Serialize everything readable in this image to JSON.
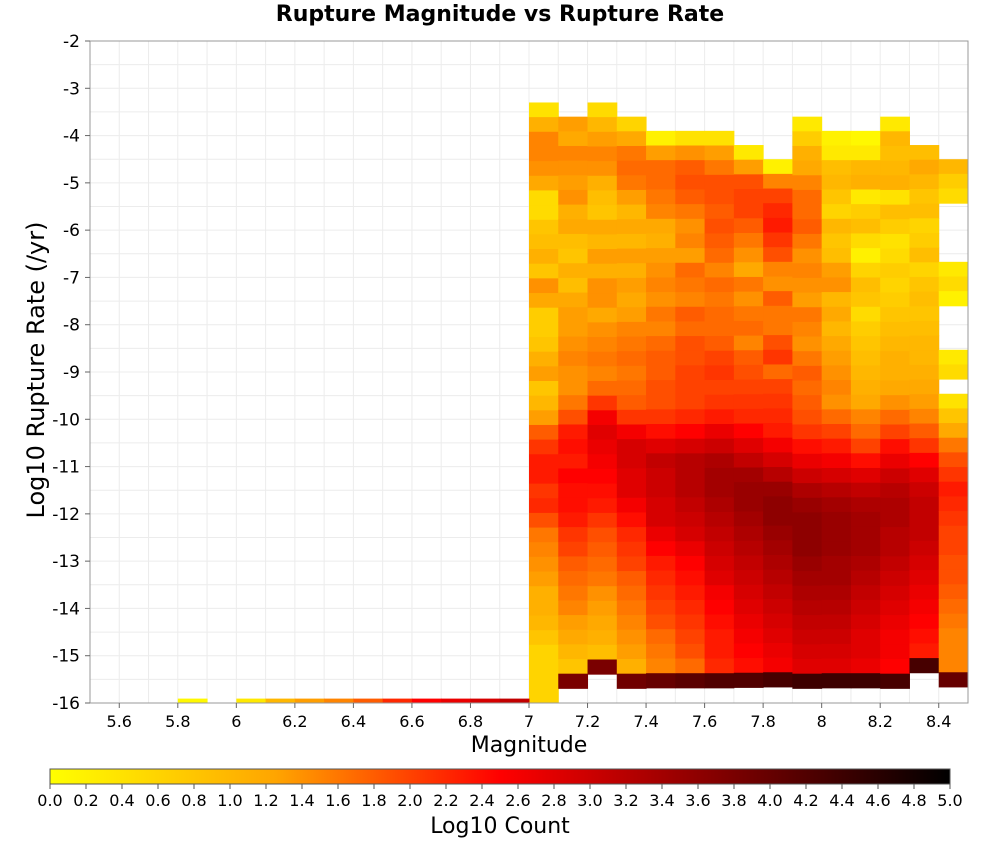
{
  "chart_data": {
    "type": "heatmap",
    "title": "Rupture Magnitude vs Rupture Rate",
    "xlabel": "Magnitude",
    "ylabel": "Log10 Rupture Rate (/yr)",
    "xlim": [
      5.5,
      8.5
    ],
    "ylim": [
      -16,
      -2
    ],
    "x_ticks": [
      "5.6",
      "5.8",
      "6",
      "6.2",
      "6.4",
      "6.6",
      "6.8",
      "7",
      "7.2",
      "7.4",
      "7.6",
      "7.8",
      "8",
      "8.2",
      "8.4"
    ],
    "y_ticks": [
      "-2",
      "-3",
      "-4",
      "-5",
      "-6",
      "-7",
      "-8",
      "-9",
      "-10",
      "-11",
      "-12",
      "-13",
      "-14",
      "-15",
      "-16"
    ],
    "bin_width_x": 0.1,
    "bin_height_y": 0.31,
    "grid": true,
    "colorbar": {
      "label": "Log10 Count",
      "min": 0,
      "max": 5,
      "ticks": [
        "0.0",
        "0.2",
        "0.4",
        "0.6",
        "0.8",
        "1.0",
        "1.2",
        "1.4",
        "1.6",
        "1.8",
        "2.0",
        "2.2",
        "2.4",
        "2.6",
        "2.8",
        "3.0",
        "3.2",
        "3.4",
        "3.6",
        "3.8",
        "4.0",
        "4.2",
        "4.4",
        "4.6",
        "4.8",
        "5.0"
      ],
      "colors": [
        "#ffff00",
        "#ffa500",
        "#ff0000",
        "#7f0000",
        "#000000"
      ]
    },
    "bottom_row": {
      "y": -16,
      "points": [
        {
          "x": 5.85,
          "value": 0.1
        },
        {
          "x": 6.05,
          "value": 0.3
        },
        {
          "x": 6.15,
          "value": 1.0
        },
        {
          "x": 6.25,
          "value": 1.3
        },
        {
          "x": 6.35,
          "value": 1.5
        },
        {
          "x": 6.45,
          "value": 1.8
        },
        {
          "x": 6.55,
          "value": 2.2
        },
        {
          "x": 6.65,
          "value": 2.5
        },
        {
          "x": 6.75,
          "value": 2.7
        },
        {
          "x": 6.85,
          "value": 2.9
        },
        {
          "x": 6.95,
          "value": 3.1
        }
      ]
    },
    "columns": [
      {
        "x": 7.05,
        "top": -3.3,
        "values": [
          0.4,
          1.1,
          1.5,
          1.5,
          1.4,
          1.2,
          0.5,
          0.5,
          0.8,
          0.9,
          1.1,
          0.8,
          1.4,
          1.2,
          0.7,
          0.7,
          0.8,
          1.1,
          1.3,
          0.8,
          1.0,
          1.3,
          1.8,
          2.1,
          2.3,
          2.3,
          2.1,
          2.2,
          1.9,
          1.6,
          1.5,
          1.4,
          1.3,
          1.1,
          1.1,
          1.0,
          0.8,
          0.6,
          0.6,
          0.6,
          0.6,
          0.5,
          0.6,
          0.5
        ]
      },
      {
        "x": 7.15,
        "top": -3.6,
        "values": [
          1.3,
          1.2,
          1.5,
          1.4,
          1.3,
          1.4,
          1.1,
          1.2,
          0.9,
          0.8,
          1.1,
          0.9,
          1.2,
          1.3,
          1.3,
          1.4,
          1.5,
          1.4,
          1.4,
          1.6,
          1.9,
          2.3,
          2.4,
          2.3,
          2.5,
          2.4,
          2.4,
          2.3,
          2.1,
          2.0,
          1.8,
          1.7,
          1.6,
          1.5,
          1.3,
          1.2,
          1.0,
          0.8,
          3.8
        ]
      },
      {
        "x": 7.25,
        "top": -3.3,
        "values": [
          0.5,
          1.0,
          1.3,
          1.5,
          1.4,
          1.1,
          0.9,
          0.8,
          1.2,
          1.0,
          1.3,
          1.1,
          1.4,
          1.4,
          1.2,
          1.4,
          1.5,
          1.6,
          1.5,
          1.7,
          2.1,
          2.6,
          2.8,
          2.7,
          2.6,
          2.5,
          2.4,
          2.3,
          2.1,
          1.9,
          1.8,
          1.7,
          1.6,
          1.4,
          1.3,
          1.2,
          1.1,
          0.9,
          3.8
        ]
      },
      {
        "x": 7.35,
        "top": -3.6,
        "values": [
          0.6,
          1.2,
          1.6,
          1.7,
          1.6,
          1.3,
          1.0,
          1.2,
          1.0,
          1.3,
          1.1,
          1.3,
          1.2,
          1.3,
          1.5,
          1.6,
          1.7,
          1.6,
          1.7,
          1.8,
          2.1,
          2.6,
          2.9,
          2.9,
          2.8,
          2.8,
          2.6,
          2.4,
          2.2,
          2.1,
          2.0,
          1.8,
          1.7,
          1.6,
          1.5,
          1.4,
          1.3,
          1.1,
          3.9
        ]
      },
      {
        "x": 7.45,
        "top": -3.9,
        "values": [
          0.2,
          1.3,
          1.7,
          1.7,
          1.6,
          1.5,
          1.2,
          1.1,
          1.3,
          1.4,
          1.5,
          1.4,
          1.6,
          1.5,
          1.7,
          1.8,
          1.8,
          1.9,
          1.9,
          2.1,
          2.4,
          2.8,
          3.1,
          3.0,
          3.0,
          2.9,
          2.9,
          2.7,
          2.5,
          2.3,
          2.2,
          2.1,
          2.0,
          1.9,
          1.7,
          1.6,
          1.5,
          4.0
        ]
      },
      {
        "x": 7.55,
        "top": -3.9,
        "values": [
          0.4,
          1.4,
          1.8,
          1.9,
          1.8,
          1.6,
          1.4,
          1.5,
          1.3,
          1.7,
          1.6,
          1.5,
          1.8,
          1.7,
          1.9,
          1.9,
          2.0,
          2.0,
          2.0,
          2.2,
          2.5,
          2.9,
          3.2,
          3.2,
          3.2,
          3.1,
          3.0,
          2.9,
          2.7,
          2.5,
          2.4,
          2.3,
          2.2,
          2.1,
          2.0,
          1.9,
          1.7,
          4.1
        ]
      },
      {
        "x": 7.65,
        "top": -3.9,
        "values": [
          0.4,
          1.3,
          1.6,
          1.9,
          1.9,
          1.8,
          1.9,
          1.8,
          1.7,
          1.5,
          1.7,
          1.6,
          1.7,
          1.7,
          1.8,
          2.0,
          2.1,
          2.0,
          2.1,
          2.3,
          2.7,
          3.0,
          3.3,
          3.4,
          3.4,
          3.3,
          3.2,
          3.1,
          3.0,
          2.9,
          2.8,
          2.6,
          2.5,
          2.4,
          2.3,
          2.3,
          2.2,
          4.2
        ]
      },
      {
        "x": 7.75,
        "top": -4.2,
        "values": [
          0.3,
          1.3,
          1.9,
          2.0,
          2.0,
          1.8,
          1.6,
          1.4,
          1.2,
          1.6,
          1.4,
          1.6,
          1.7,
          1.5,
          1.8,
          1.9,
          2.0,
          2.1,
          2.2,
          2.5,
          2.8,
          3.1,
          3.4,
          3.5,
          3.5,
          3.4,
          3.3,
          3.2,
          3.1,
          3.0,
          2.9,
          2.8,
          2.7,
          2.6,
          2.5,
          2.4,
          4.2
        ]
      },
      {
        "x": 7.85,
        "top": -4.5,
        "values": [
          0.2,
          1.5,
          2.0,
          2.2,
          2.3,
          2.1,
          1.9,
          1.5,
          1.4,
          1.8,
          1.6,
          1.6,
          1.9,
          2.1,
          1.7,
          2.0,
          2.1,
          2.2,
          2.3,
          2.6,
          2.9,
          3.2,
          3.5,
          3.6,
          3.6,
          3.5,
          3.4,
          3.3,
          3.2,
          3.1,
          3.0,
          2.9,
          2.8,
          2.7,
          2.6,
          4.3
        ]
      },
      {
        "x": 7.95,
        "top": -3.6,
        "values": [
          0.3,
          0.7,
          1.1,
          1.2,
          1.5,
          1.7,
          1.7,
          1.8,
          1.6,
          1.4,
          1.5,
          1.4,
          1.3,
          1.6,
          1.5,
          1.4,
          1.6,
          1.8,
          1.7,
          1.8,
          1.9,
          2.1,
          2.4,
          2.7,
          3.0,
          3.3,
          3.5,
          3.6,
          3.6,
          3.6,
          3.5,
          3.4,
          3.3,
          3.2,
          3.1,
          3.0,
          2.9,
          2.8,
          4.4
        ]
      },
      {
        "x": 8.05,
        "top": -3.9,
        "values": [
          0.2,
          0.3,
          0.9,
          1.0,
          0.8,
          0.6,
          1.0,
          0.8,
          0.9,
          1.3,
          1.4,
          1.0,
          1.2,
          1.0,
          1.2,
          1.3,
          1.4,
          1.5,
          1.4,
          1.7,
          2.0,
          2.3,
          2.6,
          2.9,
          3.2,
          3.4,
          3.5,
          3.5,
          3.5,
          3.4,
          3.4,
          3.3,
          3.2,
          3.1,
          3.0,
          2.9,
          2.8,
          4.4
        ]
      },
      {
        "x": 8.15,
        "top": -3.9,
        "values": [
          0.1,
          0.3,
          1.0,
          1.1,
          0.3,
          0.7,
          0.9,
          0.5,
          0.2,
          0.6,
          0.9,
          0.8,
          0.5,
          0.7,
          0.8,
          0.9,
          1.0,
          1.1,
          1.2,
          1.5,
          1.7,
          2.0,
          2.4,
          2.8,
          3.1,
          3.3,
          3.4,
          3.4,
          3.4,
          3.3,
          3.2,
          3.1,
          3.0,
          2.9,
          2.8,
          2.8,
          2.7,
          4.4
        ]
      },
      {
        "x": 8.25,
        "top": -3.6,
        "values": [
          0.3,
          1.0,
          0.9,
          1.0,
          1.1,
          0.4,
          0.9,
          0.7,
          0.4,
          0.5,
          0.7,
          0.6,
          0.7,
          0.8,
          0.9,
          1.0,
          1.1,
          1.1,
          1.2,
          1.4,
          1.7,
          2.0,
          2.4,
          2.7,
          3.0,
          3.2,
          3.3,
          3.3,
          3.2,
          3.2,
          3.1,
          3.0,
          2.9,
          2.8,
          2.7,
          2.6,
          2.6,
          2.5,
          4.3
        ]
      },
      {
        "x": 8.35,
        "top": -4.2,
        "values": [
          0.9,
          1.2,
          1.0,
          0.8,
          0.9,
          0.6,
          0.7,
          0.9,
          0.6,
          0.8,
          0.9,
          0.8,
          0.9,
          1.0,
          1.0,
          1.1,
          1.2,
          1.3,
          1.5,
          1.8,
          2.1,
          2.5,
          2.8,
          3.0,
          3.1,
          3.1,
          3.1,
          3.0,
          2.9,
          2.8,
          2.7,
          2.6,
          2.5,
          2.4,
          2.3,
          4.3
        ]
      },
      {
        "x": 8.45,
        "top": -4.5,
        "values": [
          1.0,
          0.7,
          0.5,
          null,
          null,
          null,
          null,
          0.3,
          0.5,
          0.2,
          null,
          null,
          null,
          0.3,
          0.5,
          null,
          0.4,
          0.8,
          1.2,
          1.6,
          1.9,
          2.1,
          2.3,
          2.2,
          2.1,
          2.0,
          2.0,
          1.9,
          1.9,
          1.8,
          1.7,
          1.6,
          1.5,
          1.5,
          1.5,
          4.0
        ]
      }
    ]
  }
}
